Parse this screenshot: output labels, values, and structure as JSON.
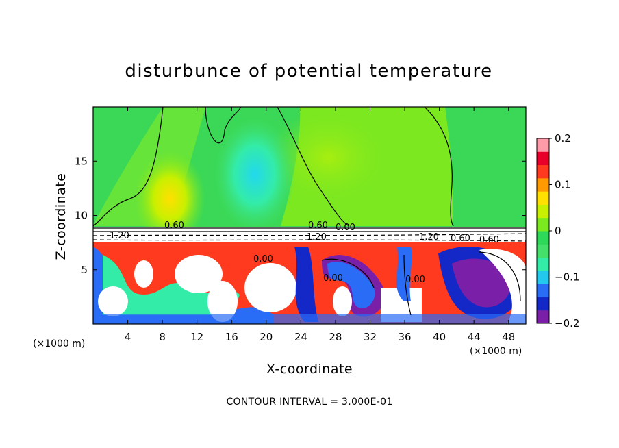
{
  "chart_data": {
    "type": "heatmap",
    "title": "disturbunce of potential temperature",
    "xlabel": "X-coordinate",
    "ylabel": "Z-coordinate",
    "x_unit": "(×1000 m)",
    "z_unit": "(×1000 m)",
    "xlim": [
      0,
      50
    ],
    "ylim": [
      0,
      20
    ],
    "x_ticks": [
      "4",
      "8",
      "12",
      "16",
      "20",
      "24",
      "28",
      "32",
      "36",
      "40",
      "44",
      "48"
    ],
    "y_ticks": [
      "5",
      "10",
      "15"
    ],
    "colorbar": {
      "range": [
        -0.2,
        0.2
      ],
      "ticks": [
        "0.2",
        "0.1",
        "0",
        "−0.1",
        "−0.2"
      ],
      "colors": [
        "#7a1fa8",
        "#1428c8",
        "#2a6cf5",
        "#22c8ee",
        "#33eca8",
        "#44e06a",
        "#2ed858",
        "#7ce820",
        "#c8f000",
        "#ffe000",
        "#ff9a00",
        "#ff3a1e",
        "#e8002a",
        "#ff9aa8"
      ]
    },
    "contour_interval": "CONTOUR INTERVAL = 3.000E-01",
    "contour_labels": [
      "0.60",
      "1.20",
      "0.00",
      "0.60",
      "1.20",
      "0.00",
      "0.00",
      "0.00",
      "1.20",
      "0.60",
      "0.60"
    ],
    "regions": {
      "upper": "near-zero disturbance (green) with weak positive anomalies around x=8-10 and negative anomalies around x=18-22 above z≈9",
      "inversion": "strong contour band near z≈8.5-9",
      "lower": "turbulent mixed layer below z≈8 with values exceeding ±0.2"
    }
  }
}
